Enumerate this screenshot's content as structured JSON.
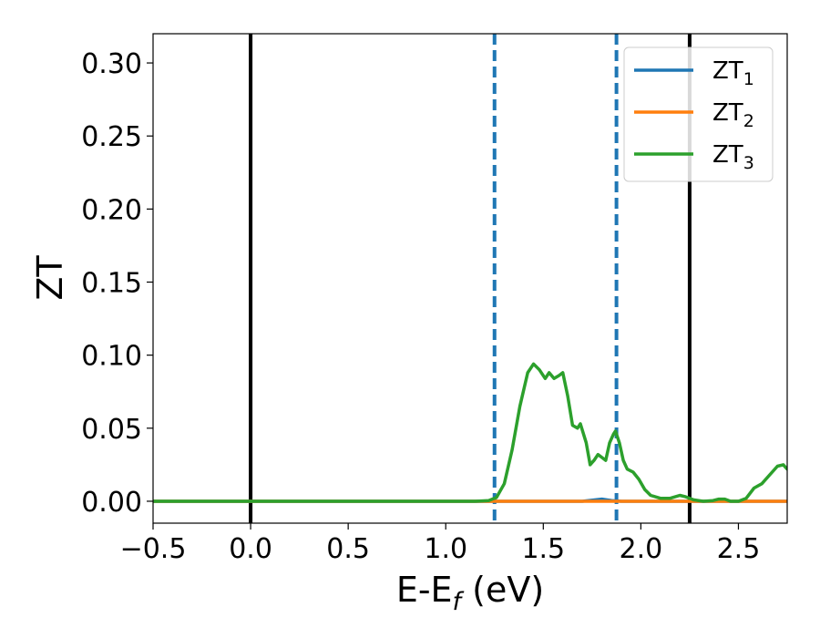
{
  "chart_data": {
    "type": "line",
    "xlabel": {
      "main": "E-E",
      "sub": "f",
      "unit": " (eV)"
    },
    "ylabel": "ZT",
    "xlim": [
      -0.5,
      2.75
    ],
    "ylim": [
      -0.015,
      0.32
    ],
    "xticks": [
      -0.5,
      0.0,
      0.5,
      1.0,
      1.5,
      2.0,
      2.5
    ],
    "xtick_labels": [
      "−0.5",
      "0.0",
      "0.5",
      "1.0",
      "1.5",
      "2.0",
      "2.5"
    ],
    "yticks": [
      0.0,
      0.05,
      0.1,
      0.15,
      0.2,
      0.25,
      0.3
    ],
    "ytick_labels": [
      "0.00",
      "0.05",
      "0.10",
      "0.15",
      "0.20",
      "0.25",
      "0.30"
    ],
    "grid": false,
    "legend_position": "top-right",
    "vlines": [
      {
        "x": 0.0,
        "style": "solid",
        "color": "#000000"
      },
      {
        "x": 2.25,
        "style": "solid",
        "color": "#000000"
      },
      {
        "x": 1.25,
        "style": "dashed",
        "color": "#1f77b4"
      },
      {
        "x": 1.875,
        "style": "dashed",
        "color": "#1f77b4"
      }
    ],
    "series": [
      {
        "name": "ZT",
        "sub": "1",
        "color": "#1f77b4",
        "x": [
          -0.5,
          1.25,
          1.7,
          1.8,
          1.85,
          1.9,
          2.0,
          2.75
        ],
        "y": [
          0.0,
          0.0,
          0.0,
          0.0015,
          0.0005,
          0.0,
          0.0,
          0.0
        ]
      },
      {
        "name": "ZT",
        "sub": "2",
        "color": "#ff7f0e",
        "x": [
          -0.5,
          2.75
        ],
        "y": [
          0.0,
          0.0
        ]
      },
      {
        "name": "ZT",
        "sub": "3",
        "color": "#2ca02c",
        "x": [
          -0.5,
          1.15,
          1.22,
          1.26,
          1.3,
          1.34,
          1.38,
          1.42,
          1.45,
          1.48,
          1.51,
          1.53,
          1.555,
          1.58,
          1.6,
          1.625,
          1.65,
          1.675,
          1.69,
          1.72,
          1.74,
          1.76,
          1.78,
          1.8,
          1.82,
          1.84,
          1.86,
          1.87,
          1.89,
          1.91,
          1.93,
          1.96,
          1.99,
          2.02,
          2.05,
          2.1,
          2.15,
          2.2,
          2.23,
          2.27,
          2.32,
          2.37,
          2.4,
          2.43,
          2.46,
          2.5,
          2.54,
          2.58,
          2.62,
          2.66,
          2.7,
          2.73,
          2.75
        ],
        "y": [
          0.0,
          0.0,
          0.0005,
          0.0025,
          0.012,
          0.035,
          0.065,
          0.088,
          0.094,
          0.09,
          0.084,
          0.088,
          0.084,
          0.086,
          0.088,
          0.072,
          0.052,
          0.05,
          0.053,
          0.04,
          0.025,
          0.028,
          0.032,
          0.03,
          0.028,
          0.04,
          0.046,
          0.048,
          0.04,
          0.028,
          0.022,
          0.02,
          0.015,
          0.008,
          0.004,
          0.002,
          0.002,
          0.004,
          0.003,
          0.001,
          0.0,
          0.0005,
          0.0015,
          0.0015,
          0.0,
          0.0,
          0.002,
          0.009,
          0.012,
          0.018,
          0.024,
          0.025,
          0.022
        ]
      }
    ]
  }
}
